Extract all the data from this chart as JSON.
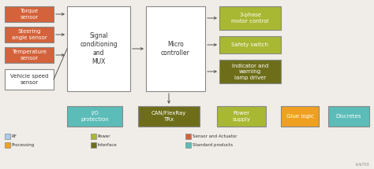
{
  "bg_color": "#f0ede8",
  "colors": {
    "sensor": "#d4623a",
    "white_box": "#ffffff",
    "power_green": "#a8b832",
    "interface_olive": "#6e6e1a",
    "teal": "#5bbcb8",
    "orange": "#f0a020",
    "edge": "#888888",
    "text_dark": "#333333",
    "arrow": "#555555"
  },
  "sensor_boxes": [
    {
      "label": "Torque\nsensor"
    },
    {
      "label": "Steering\nangle sensor"
    },
    {
      "label": "Temperature\nsensor"
    },
    {
      "label": "Vehicle speed\nsensor",
      "white": true
    }
  ],
  "output_boxes": [
    {
      "label": "3-phase\nmotor control"
    },
    {
      "label": "Safety switch"
    },
    {
      "label": "Indicator and\nwarning\nlamp driver",
      "olive": true
    }
  ],
  "bottom_boxes": [
    {
      "label": "I/O\nprotection",
      "color": "teal"
    },
    {
      "label": "CAN/FlexRay\nTRx",
      "color": "interface_olive"
    },
    {
      "label": "Power\nsupply",
      "color": "power_green"
    },
    {
      "label": "Glue logic",
      "color": "orange"
    },
    {
      "label": "Discretes",
      "color": "teal"
    }
  ],
  "legend_items": [
    {
      "label": "RF",
      "color": "#aaccee"
    },
    {
      "label": "Processing",
      "color": "#f0a020"
    },
    {
      "label": "Power",
      "color": "#a8b832"
    },
    {
      "label": "Interface",
      "color": "#6e6e1a"
    },
    {
      "label": "Sensor and Actuator",
      "color": "#d4623a"
    },
    {
      "label": "Standard products",
      "color": "#5bbcb8"
    }
  ],
  "watermark": "brb703"
}
